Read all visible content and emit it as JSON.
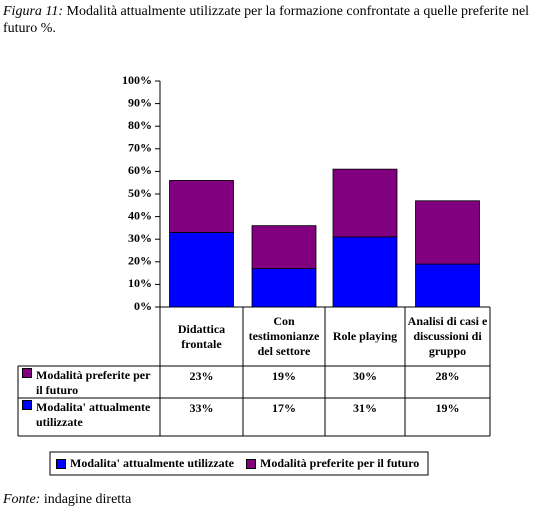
{
  "header": {
    "label": "Figura 11:",
    "title": "Modalità attualmente utilizzate per la formazione confrontate a quelle preferite nel futuro %."
  },
  "chart_data": {
    "type": "stacked_bar",
    "categories": [
      "Didattica frontale",
      "Con testimonianze del settore",
      "Role playing",
      "Analisi di casi e discussioni di gruppo"
    ],
    "series": [
      {
        "name": "Modalita' attualmente utilizzate",
        "color": "#0000ff",
        "values": [
          33,
          17,
          31,
          19
        ],
        "value_labels": [
          "33%",
          "17%",
          "31%",
          "19%"
        ]
      },
      {
        "name": "Modalità preferite per il futuro",
        "color": "#800080",
        "values": [
          23,
          19,
          30,
          28
        ],
        "value_labels": [
          "23%",
          "19%",
          "30%",
          "28%"
        ]
      }
    ],
    "ylim": [
      0,
      100
    ],
    "yticks": [
      {
        "value": 0,
        "label": "0%"
      },
      {
        "value": 10,
        "label": "10%"
      },
      {
        "value": 20,
        "label": "20%"
      },
      {
        "value": 30,
        "label": "30%"
      },
      {
        "value": 40,
        "label": "40%"
      },
      {
        "value": 50,
        "label": "50%"
      },
      {
        "value": 60,
        "label": "60%"
      },
      {
        "value": 70,
        "label": "70%"
      },
      {
        "value": 80,
        "label": "80%"
      },
      {
        "value": 90,
        "label": "90%"
      },
      {
        "value": 100,
        "label": "100%"
      }
    ],
    "table_row_order": [
      1,
      0
    ]
  },
  "footer": {
    "label": "Fonte:",
    "text": "indagine diretta"
  }
}
